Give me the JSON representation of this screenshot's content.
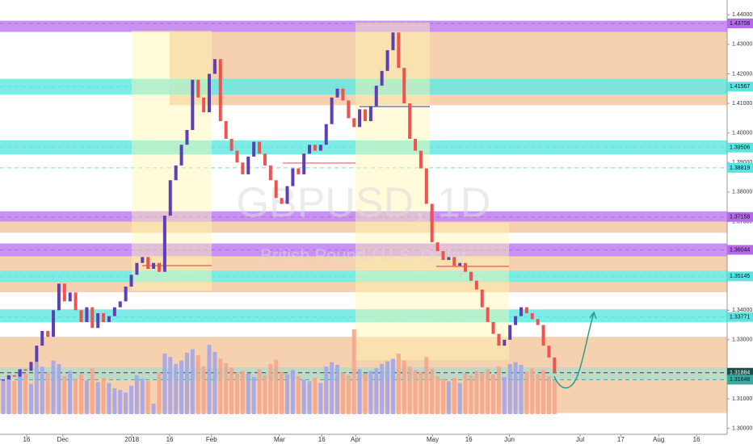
{
  "chart_data": {
    "type": "candlestick",
    "title": "GBPUSD, 1D",
    "subtitle": "British Pound / U.S. Dollar",
    "ylim": [
      1.298,
      1.445
    ],
    "xlim": [
      -0.58,
      130
    ],
    "yticks": [
      {
        "value": 1.44,
        "label": "1.44000"
      },
      {
        "value": 1.43,
        "label": "1.43000"
      },
      {
        "value": 1.42,
        "label": "1.42000"
      },
      {
        "value": 1.41,
        "label": "1.41000"
      },
      {
        "value": 1.4,
        "label": "1.40000"
      },
      {
        "value": 1.39,
        "label": "1.39000"
      },
      {
        "value": 1.38,
        "label": "1.38000"
      },
      {
        "value": 1.37,
        "label": "1.37000"
      },
      {
        "value": 1.34,
        "label": "1.34000"
      },
      {
        "value": 1.33,
        "label": "1.33000"
      },
      {
        "value": 1.31,
        "label": "1.31000"
      },
      {
        "value": 1.3,
        "label": "1.30000"
      }
    ],
    "xticks": [
      {
        "value": 4.2,
        "label": "16"
      },
      {
        "value": 10.7,
        "label": "Dec"
      },
      {
        "value": 23.1,
        "label": "2018"
      },
      {
        "value": 29.9,
        "label": "16"
      },
      {
        "value": 37.4,
        "label": "Feb"
      },
      {
        "value": 49.6,
        "label": "Mar"
      },
      {
        "value": 57.2,
        "label": "16"
      },
      {
        "value": 63.3,
        "label": "Apr"
      },
      {
        "value": 77.1,
        "label": "May"
      },
      {
        "value": 83.6,
        "label": "16"
      },
      {
        "value": 90.9,
        "label": "Jun"
      },
      {
        "value": 103.6,
        "label": "Jul"
      },
      {
        "value": 110.9,
        "label": "17"
      },
      {
        "value": 117.7,
        "label": "Aug"
      },
      {
        "value": 124.5,
        "label": "16"
      }
    ],
    "price_labels": [
      {
        "value": 1.43708,
        "label": "1.43708",
        "color": "#b36be6"
      },
      {
        "value": 1.41567,
        "label": "1.41567",
        "color": "#5fe3e0"
      },
      {
        "value": 1.39506,
        "label": "1.39506",
        "color": "#5fe3e0"
      },
      {
        "value": 1.38819,
        "label": "1.38819",
        "color": "#5fe3e0"
      },
      {
        "value": 1.37158,
        "label": "1.37158",
        "color": "#b36be6"
      },
      {
        "value": 1.36044,
        "label": "1.36044",
        "color": "#b36be6"
      },
      {
        "value": 1.35145,
        "label": "1.35145",
        "color": "#5fe3e0"
      },
      {
        "value": 1.33771,
        "label": "1.33771",
        "color": "#5fe3e0"
      },
      {
        "value": 1.31884,
        "label": "1.31884",
        "color": "#1f4a4a"
      },
      {
        "value": 1.31648,
        "label": "1.31648",
        "color": "#3aa99f"
      }
    ],
    "zones": [
      {
        "from": 1.4342,
        "to": 1.438,
        "color": "#c07ef0"
      },
      {
        "from": 1.4094,
        "to": 1.4342,
        "color": "#f3c9a2",
        "start": 29.9
      },
      {
        "from": 1.413,
        "to": 1.4183,
        "color": "#66e8e2"
      },
      {
        "from": 1.3927,
        "to": 1.3975,
        "color": "#66e8e2"
      },
      {
        "from": 1.37,
        "to": 1.3735,
        "color": "#c07ef0"
      },
      {
        "from": 1.3662,
        "to": 1.37,
        "color": "#f3c9a2"
      },
      {
        "from": 1.3582,
        "to": 1.3626,
        "color": "#c07ef0"
      },
      {
        "from": 1.3535,
        "to": 1.3582,
        "color": "#f3c9a2"
      },
      {
        "from": 1.3494,
        "to": 1.3535,
        "color": "#66e8e2"
      },
      {
        "from": 1.3461,
        "to": 1.3494,
        "color": "#f3c9a2"
      },
      {
        "from": 1.3359,
        "to": 1.3403,
        "color": "#66e8e2"
      },
      {
        "from": 1.3207,
        "to": 1.331,
        "color": "#f3c9a2"
      },
      {
        "from": 1.3166,
        "to": 1.3207,
        "color": "#b3d4bd"
      },
      {
        "from": 1.3052,
        "to": 1.3166,
        "color": "#f3c9a2"
      }
    ],
    "up_color": "#5e3fb5",
    "down_color": "#ef5350",
    "volume_up_color": "#a3a6ea",
    "volume_down_color": "#f5a78c",
    "close": [
      1.3166,
      1.318,
      1.3175,
      1.32,
      1.3195,
      1.3225,
      1.328,
      1.333,
      1.331,
      1.34,
      1.349,
      1.343,
      1.346,
      1.34,
      1.336,
      1.341,
      1.334,
      1.339,
      1.336,
      1.338,
      1.341,
      1.343,
      1.348,
      1.352,
      1.356,
      1.358,
      1.354,
      1.356,
      1.353,
      1.372,
      1.384,
      1.389,
      1.396,
      1.401,
      1.418,
      1.412,
      1.407,
      1.42,
      1.425,
      1.404,
      1.398,
      1.394,
      1.39,
      1.386,
      1.392,
      1.397,
      1.393,
      1.389,
      1.384,
      1.378,
      1.376,
      1.382,
      1.388,
      1.386,
      1.393,
      1.396,
      1.394,
      1.396,
      1.403,
      1.412,
      1.415,
      1.411,
      1.405,
      1.402,
      1.408,
      1.404,
      1.409,
      1.416,
      1.421,
      1.428,
      1.434,
      1.422,
      1.41,
      1.398,
      1.394,
      1.388,
      1.376,
      1.363,
      1.36,
      1.357,
      1.358,
      1.355,
      1.356,
      1.353,
      1.35,
      1.347,
      1.341,
      1.336,
      1.332,
      1.328,
      1.33,
      1.335,
      1.338,
      1.341,
      1.339,
      1.337,
      1.335,
      1.328,
      1.324,
      1.3188
    ],
    "volume": [
      40,
      45,
      38,
      52,
      47,
      35,
      60,
      55,
      48,
      62,
      58,
      44,
      50,
      41,
      46,
      39,
      53,
      37,
      42,
      36,
      30,
      28,
      25,
      33,
      45,
      41,
      38,
      12,
      48,
      70,
      66,
      58,
      62,
      71,
      75,
      68,
      55,
      80,
      72,
      64,
      59,
      54,
      48,
      50,
      47,
      43,
      52,
      45,
      58,
      63,
      49,
      46,
      51,
      44,
      40,
      38,
      42,
      36,
      55,
      60,
      57,
      48,
      45,
      98,
      52,
      47,
      50,
      53,
      58,
      61,
      64,
      70,
      62,
      55,
      51,
      49,
      66,
      52,
      44,
      41,
      38,
      42,
      36,
      47,
      45,
      50,
      48,
      52,
      46,
      55,
      43,
      58,
      60,
      57,
      49,
      53,
      46,
      51,
      44,
      39
    ]
  }
}
